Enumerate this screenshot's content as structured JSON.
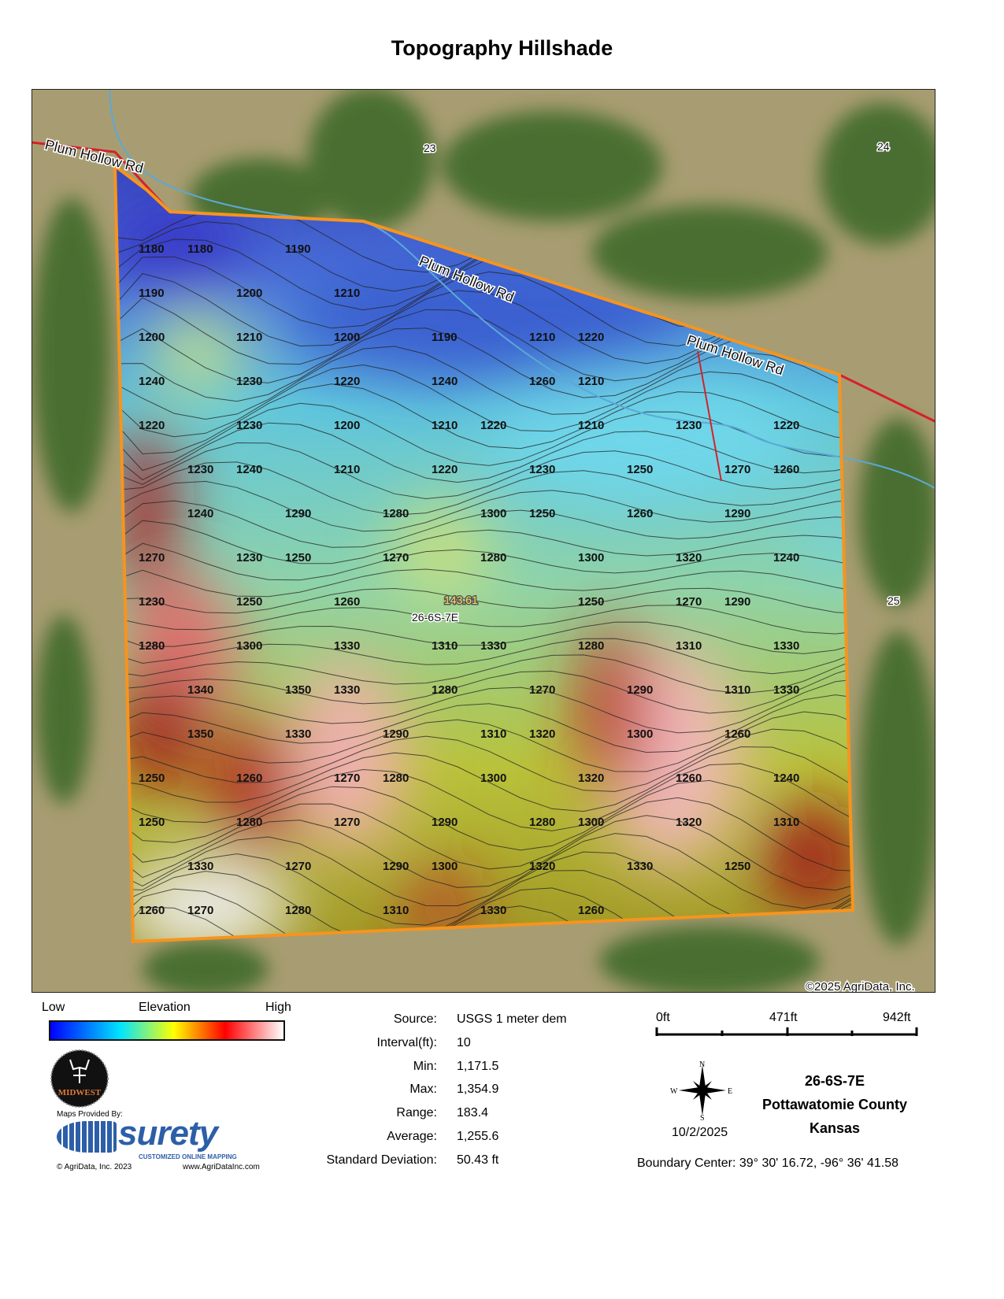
{
  "title": "Topography Hillshade",
  "map": {
    "road_label": "Plum Hollow Rd",
    "section_numbers": [
      "23",
      "24",
      "25"
    ],
    "acreage_label": "143.61",
    "parcel_label": "26-6S-7E",
    "copyright": "©2025 AgriData, Inc.",
    "contour_labels": [
      "1180",
      "1180",
      "1190",
      "1190",
      "1200",
      "1210",
      "1200",
      "1210",
      "1200",
      "1190",
      "1210",
      "1220",
      "1240",
      "1230",
      "1220",
      "1240",
      "1260",
      "1210",
      "1220",
      "1230",
      "1200",
      "1210",
      "1220",
      "1210",
      "1230",
      "1220",
      "1230",
      "1240",
      "1210",
      "1220",
      "1230",
      "1250",
      "1270",
      "1260",
      "1240",
      "1290",
      "1280",
      "1300",
      "1250",
      "1260",
      "1290",
      "1270",
      "1230",
      "1250",
      "1270",
      "1280",
      "1300",
      "1320",
      "1240",
      "1230",
      "1250",
      "1260",
      "1250",
      "1270",
      "1290",
      "1280",
      "1300",
      "1330",
      "1310",
      "1330",
      "1280",
      "1310",
      "1330",
      "1340",
      "1350",
      "1330",
      "1280",
      "1270",
      "1290",
      "1310",
      "1330",
      "1350",
      "1330",
      "1290",
      "1310",
      "1320",
      "1300",
      "1260",
      "1250",
      "1260",
      "1270",
      "1280",
      "1300",
      "1320",
      "1260",
      "1240",
      "1250",
      "1280",
      "1270",
      "1290",
      "1280",
      "1300",
      "1320",
      "1310",
      "1330",
      "1270",
      "1290",
      "1300",
      "1320",
      "1330",
      "1250",
      "1260",
      "1270",
      "1280",
      "1310",
      "1330",
      "1260"
    ],
    "colors": {
      "boundary": "#f7941d",
      "road": "#d6202a",
      "stream": "#5aa9d8"
    }
  },
  "legend": {
    "low": "Low",
    "title": "Elevation",
    "high": "High",
    "gradient": [
      "#0000ff",
      "#00e5ff",
      "#ffff00",
      "#ff0000",
      "#ffffff"
    ]
  },
  "stats": [
    {
      "label": "Source:",
      "value": "USGS 1 meter dem"
    },
    {
      "label": "Interval(ft):",
      "value": "10"
    },
    {
      "label": "Min:",
      "value": "1,171.5"
    },
    {
      "label": "Max:",
      "value": "1,354.9"
    },
    {
      "label": "Range:",
      "value": "183.4"
    },
    {
      "label": "Average:",
      "value": "1,255.6"
    },
    {
      "label": "Standard Deviation:",
      "value": "50.43 ft"
    }
  ],
  "scale": {
    "labels": [
      "0ft",
      "471ft",
      "942ft"
    ]
  },
  "compass": {
    "n": "N",
    "s": "S",
    "e": "E",
    "w": "W"
  },
  "date": "10/2/2025",
  "location": {
    "parcel": "26-6S-7E",
    "county": "Pottawatomie County",
    "state": "Kansas"
  },
  "boundary_center": "Boundary Center: 39° 30' 16.72,  -96° 36' 41.58",
  "branding": {
    "provided_by": "Maps Provided By:",
    "logo": "surety",
    "logo_tagline": "CUSTOMIZED ONLINE MAPPING",
    "copyright": "© AgriData, Inc. 2023",
    "website": "www.AgriDataInc.com",
    "seal_text": "MIDWEST"
  }
}
